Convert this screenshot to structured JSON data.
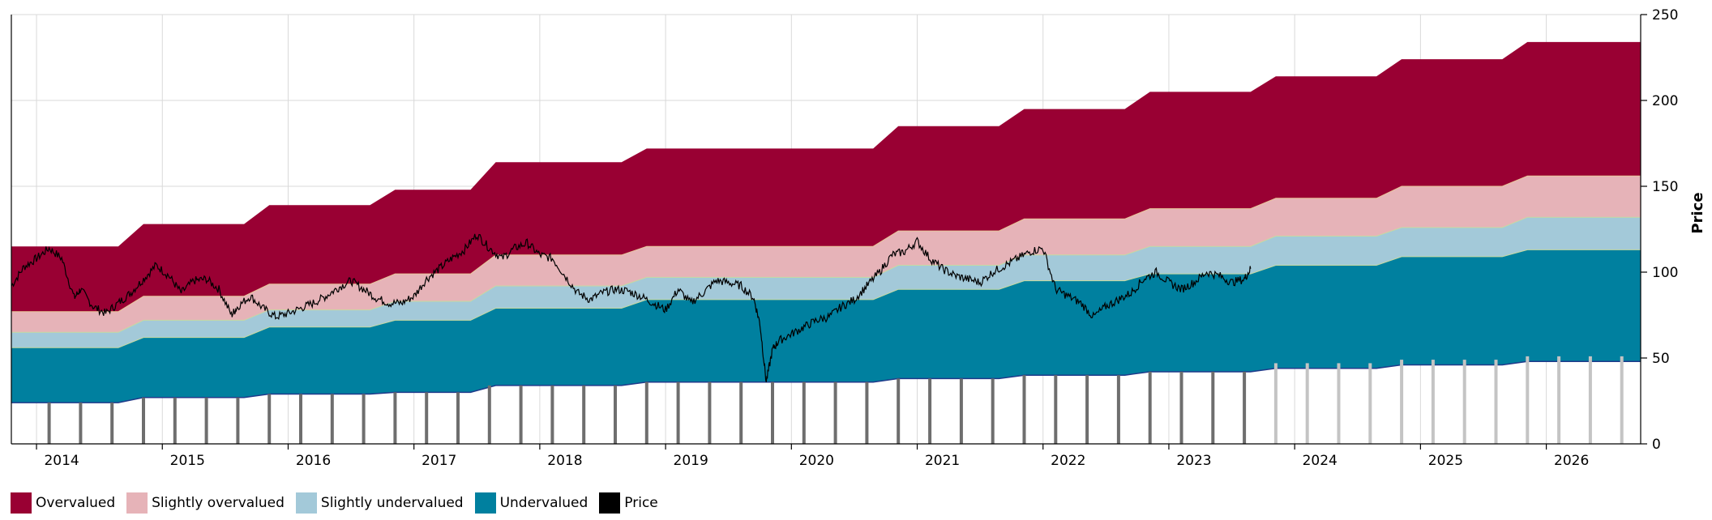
{
  "chart_data": {
    "type": "area",
    "x_unit": "year",
    "xlim": [
      2013.8,
      2026.75
    ],
    "ylim": [
      0,
      250
    ],
    "y_ticks": [
      0,
      50,
      100,
      150,
      200,
      250
    ],
    "x_ticks": [
      "2014",
      "2015",
      "2016",
      "2017",
      "2018",
      "2019",
      "2020",
      "2021",
      "2022",
      "2023",
      "2024",
      "2025",
      "2026"
    ],
    "ylabel": "Price",
    "grid": true,
    "legend_position": "bottom-left",
    "colors": {
      "overvalued": "#990033",
      "slightly_overvalued": "#e6b3b8",
      "slightly_undervalued": "#a3c9d9",
      "undervalued": "#00809f",
      "price": "#000000",
      "baseline": "#1f3a8a",
      "bar_historical": "#6e6e6e",
      "bar_forecast": "#c4c4c4"
    },
    "legend": [
      {
        "key": "overvalued",
        "label": "Overvalued"
      },
      {
        "key": "slightly_overvalued",
        "label": "Slightly overvalued"
      },
      {
        "key": "slightly_undervalued",
        "label": "Slightly undervalued"
      },
      {
        "key": "undervalued",
        "label": "Undervalued"
      },
      {
        "key": "price",
        "label": "Price"
      }
    ],
    "bands": [
      {
        "start": 2013.8,
        "end": 2014.65,
        "base": 24,
        "undervalued": 56,
        "slightly_undervalued": 65,
        "slightly_overvalued": 77,
        "overvalued": 115
      },
      {
        "start": 2014.85,
        "end": 2015.65,
        "base": 27,
        "undervalued": 62,
        "slightly_undervalued": 72,
        "slightly_overvalued": 86,
        "overvalued": 128
      },
      {
        "start": 2015.85,
        "end": 2016.65,
        "base": 29,
        "undervalued": 68,
        "slightly_undervalued": 78,
        "slightly_overvalued": 93,
        "overvalued": 139
      },
      {
        "start": 2016.85,
        "end": 2017.45,
        "base": 30,
        "undervalued": 72,
        "slightly_undervalued": 83,
        "slightly_overvalued": 99,
        "overvalued": 148
      },
      {
        "start": 2017.65,
        "end": 2018.65,
        "base": 34,
        "undervalued": 79,
        "slightly_undervalued": 92,
        "slightly_overvalued": 110,
        "overvalued": 164
      },
      {
        "start": 2018.85,
        "end": 2020.65,
        "base": 36,
        "undervalued": 84,
        "slightly_undervalued": 97,
        "slightly_overvalued": 115,
        "overvalued": 172
      },
      {
        "start": 2020.85,
        "end": 2021.65,
        "base": 38,
        "undervalued": 90,
        "slightly_undervalued": 104,
        "slightly_overvalued": 124,
        "overvalued": 185
      },
      {
        "start": 2021.85,
        "end": 2022.65,
        "base": 40,
        "undervalued": 95,
        "slightly_undervalued": 110,
        "slightly_overvalued": 131,
        "overvalued": 195
      },
      {
        "start": 2022.85,
        "end": 2023.65,
        "base": 42,
        "undervalued": 99,
        "slightly_undervalued": 115,
        "slightly_overvalued": 137,
        "overvalued": 205
      },
      {
        "start": 2023.85,
        "end": 2024.65,
        "base": 44,
        "undervalued": 104,
        "slightly_undervalued": 121,
        "slightly_overvalued": 143,
        "overvalued": 214
      },
      {
        "start": 2024.85,
        "end": 2025.65,
        "base": 46,
        "undervalued": 109,
        "slightly_undervalued": 126,
        "slightly_overvalued": 150,
        "overvalued": 224
      },
      {
        "start": 2025.85,
        "end": 2026.75,
        "base": 48,
        "undervalued": 113,
        "slightly_undervalued": 132,
        "slightly_overvalued": 156,
        "overvalued": 234
      }
    ],
    "dividend_bars": [
      {
        "x": 2014.1,
        "value": 24,
        "forecast": false
      },
      {
        "x": 2014.35,
        "value": 24,
        "forecast": false
      },
      {
        "x": 2014.6,
        "value": 24,
        "forecast": false
      },
      {
        "x": 2014.85,
        "value": 27,
        "forecast": false
      },
      {
        "x": 2015.1,
        "value": 27,
        "forecast": false
      },
      {
        "x": 2015.35,
        "value": 27,
        "forecast": false
      },
      {
        "x": 2015.6,
        "value": 27,
        "forecast": false
      },
      {
        "x": 2015.85,
        "value": 29,
        "forecast": false
      },
      {
        "x": 2016.1,
        "value": 29,
        "forecast": false
      },
      {
        "x": 2016.35,
        "value": 29,
        "forecast": false
      },
      {
        "x": 2016.6,
        "value": 29,
        "forecast": false
      },
      {
        "x": 2016.85,
        "value": 30,
        "forecast": false
      },
      {
        "x": 2017.1,
        "value": 30,
        "forecast": false
      },
      {
        "x": 2017.35,
        "value": 30,
        "forecast": false
      },
      {
        "x": 2017.6,
        "value": 34,
        "forecast": false
      },
      {
        "x": 2017.85,
        "value": 34,
        "forecast": false
      },
      {
        "x": 2018.1,
        "value": 34,
        "forecast": false
      },
      {
        "x": 2018.35,
        "value": 34,
        "forecast": false
      },
      {
        "x": 2018.6,
        "value": 34,
        "forecast": false
      },
      {
        "x": 2018.85,
        "value": 36,
        "forecast": false
      },
      {
        "x": 2019.1,
        "value": 36,
        "forecast": false
      },
      {
        "x": 2019.35,
        "value": 36,
        "forecast": false
      },
      {
        "x": 2019.6,
        "value": 36,
        "forecast": false
      },
      {
        "x": 2019.85,
        "value": 36,
        "forecast": false
      },
      {
        "x": 2020.1,
        "value": 36,
        "forecast": false
      },
      {
        "x": 2020.35,
        "value": 36,
        "forecast": false
      },
      {
        "x": 2020.6,
        "value": 36,
        "forecast": false
      },
      {
        "x": 2020.85,
        "value": 38,
        "forecast": false
      },
      {
        "x": 2021.1,
        "value": 38,
        "forecast": false
      },
      {
        "x": 2021.35,
        "value": 38,
        "forecast": false
      },
      {
        "x": 2021.6,
        "value": 38,
        "forecast": false
      },
      {
        "x": 2021.85,
        "value": 40,
        "forecast": false
      },
      {
        "x": 2022.1,
        "value": 40,
        "forecast": false
      },
      {
        "x": 2022.35,
        "value": 40,
        "forecast": false
      },
      {
        "x": 2022.6,
        "value": 40,
        "forecast": false
      },
      {
        "x": 2022.85,
        "value": 42,
        "forecast": false
      },
      {
        "x": 2023.1,
        "value": 42,
        "forecast": false
      },
      {
        "x": 2023.35,
        "value": 42,
        "forecast": false
      },
      {
        "x": 2023.6,
        "value": 42,
        "forecast": false
      },
      {
        "x": 2023.85,
        "value": 47,
        "forecast": true
      },
      {
        "x": 2024.1,
        "value": 47,
        "forecast": true
      },
      {
        "x": 2024.35,
        "value": 47,
        "forecast": true
      },
      {
        "x": 2024.6,
        "value": 47,
        "forecast": true
      },
      {
        "x": 2024.85,
        "value": 49,
        "forecast": true
      },
      {
        "x": 2025.1,
        "value": 49,
        "forecast": true
      },
      {
        "x": 2025.35,
        "value": 49,
        "forecast": true
      },
      {
        "x": 2025.6,
        "value": 49,
        "forecast": true
      },
      {
        "x": 2025.85,
        "value": 51,
        "forecast": true
      },
      {
        "x": 2026.1,
        "value": 51,
        "forecast": true
      },
      {
        "x": 2026.35,
        "value": 51,
        "forecast": true
      },
      {
        "x": 2026.6,
        "value": 51,
        "forecast": true
      }
    ],
    "price": {
      "x": [
        2013.8,
        2013.9,
        2014.0,
        2014.1,
        2014.2,
        2014.3,
        2014.35,
        2014.45,
        2014.55,
        2014.65,
        2014.75,
        2014.85,
        2014.95,
        2015.05,
        2015.15,
        2015.25,
        2015.35,
        2015.45,
        2015.55,
        2015.6,
        2015.7,
        2015.8,
        2015.9,
        2016.0,
        2016.1,
        2016.2,
        2016.3,
        2016.4,
        2016.5,
        2016.6,
        2016.7,
        2016.8,
        2016.9,
        2017.0,
        2017.1,
        2017.2,
        2017.3,
        2017.4,
        2017.5,
        2017.6,
        2017.7,
        2017.8,
        2017.9,
        2018.0,
        2018.1,
        2018.2,
        2018.3,
        2018.4,
        2018.5,
        2018.6,
        2018.7,
        2018.8,
        2018.9,
        2019.0,
        2019.1,
        2019.2,
        2019.3,
        2019.4,
        2019.5,
        2019.6,
        2019.7,
        2019.75,
        2019.8,
        2019.85,
        2019.9,
        2020.0,
        2020.1,
        2020.2,
        2020.3,
        2020.4,
        2020.5,
        2020.6,
        2020.7,
        2020.8,
        2020.9,
        2021.0,
        2021.1,
        2021.2,
        2021.3,
        2021.4,
        2021.5,
        2021.6,
        2021.7,
        2021.8,
        2021.9,
        2022.0,
        2022.1,
        2022.2,
        2022.3,
        2022.4,
        2022.5,
        2022.6,
        2022.7,
        2022.8,
        2022.9,
        2023.0,
        2023.1,
        2023.2,
        2023.3,
        2023.4,
        2023.5,
        2023.6,
        2023.65
      ],
      "y": [
        92,
        103,
        108,
        114,
        108,
        85,
        90,
        80,
        76,
        82,
        88,
        96,
        104,
        98,
        88,
        95,
        96,
        90,
        75,
        80,
        86,
        79,
        74,
        76,
        79,
        82,
        86,
        91,
        95,
        90,
        85,
        82,
        82,
        86,
        96,
        102,
        108,
        113,
        122,
        114,
        108,
        114,
        117,
        110,
        108,
        98,
        88,
        84,
        88,
        90,
        89,
        86,
        82,
        78,
        90,
        82,
        88,
        95,
        94,
        92,
        85,
        70,
        36,
        55,
        60,
        64,
        68,
        72,
        74,
        80,
        84,
        92,
        100,
        110,
        112,
        118,
        108,
        102,
        98,
        96,
        94,
        100,
        104,
        108,
        112,
        114,
        90,
        86,
        82,
        74,
        80,
        84,
        88,
        96,
        100,
        94,
        90,
        94,
        100,
        98,
        94,
        96,
        102
      ]
    }
  }
}
